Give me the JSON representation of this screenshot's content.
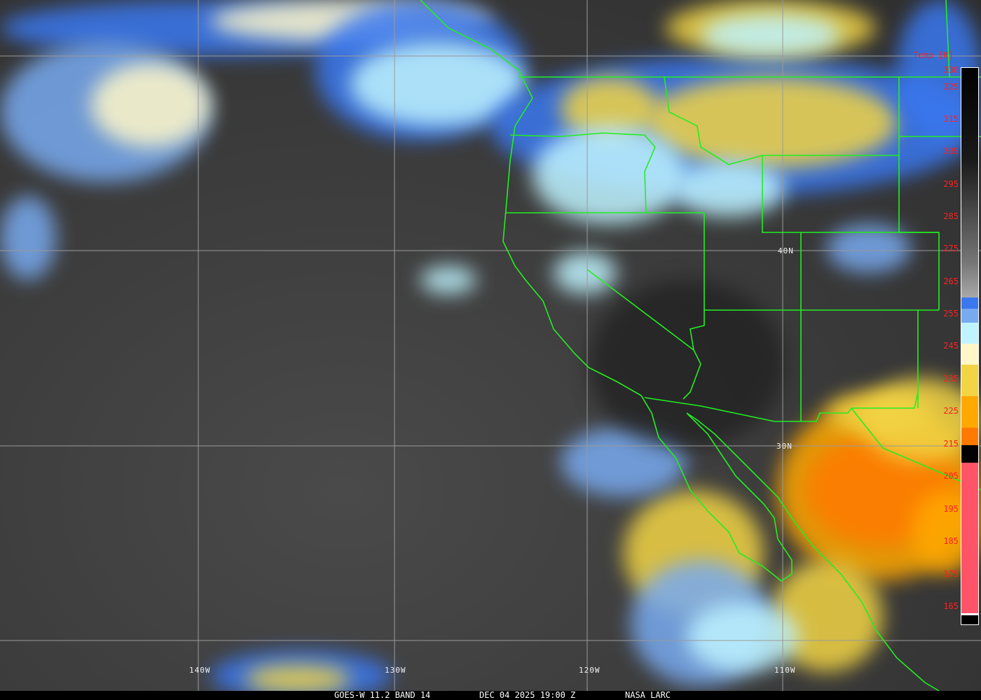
{
  "map": {
    "grid_labels": {
      "lat": [
        "40N",
        "30N"
      ],
      "lon": [
        "140W",
        "130W",
        "120W",
        "110W"
      ]
    },
    "colors": {
      "border": "#22ee22",
      "grid": "#9a9a9a",
      "tick_text": "#ff2020"
    }
  },
  "colorbar": {
    "title": "Temp [K]",
    "ticks": [
      "330",
      "325",
      "315",
      "305",
      "295",
      "285",
      "275",
      "265",
      "255",
      "245",
      "235",
      "225",
      "215",
      "205",
      "195",
      "185",
      "175",
      "165"
    ],
    "segments": [
      {
        "color": "#3a78f0"
      },
      {
        "color": "#78aaf0"
      },
      {
        "color": "#bff4ff"
      },
      {
        "color": "#fff7c8"
      },
      {
        "color": "#f2d444"
      },
      {
        "color": "#ffa800"
      },
      {
        "color": "#ff7a00"
      },
      {
        "color": "#ff4a00"
      },
      {
        "color": "#ff5468"
      }
    ]
  },
  "footer": {
    "satellite": "GOES-W 11.2 BAND 14",
    "datetime": "DEC 04 2025 19:00 Z",
    "source": "NASA LARC"
  }
}
